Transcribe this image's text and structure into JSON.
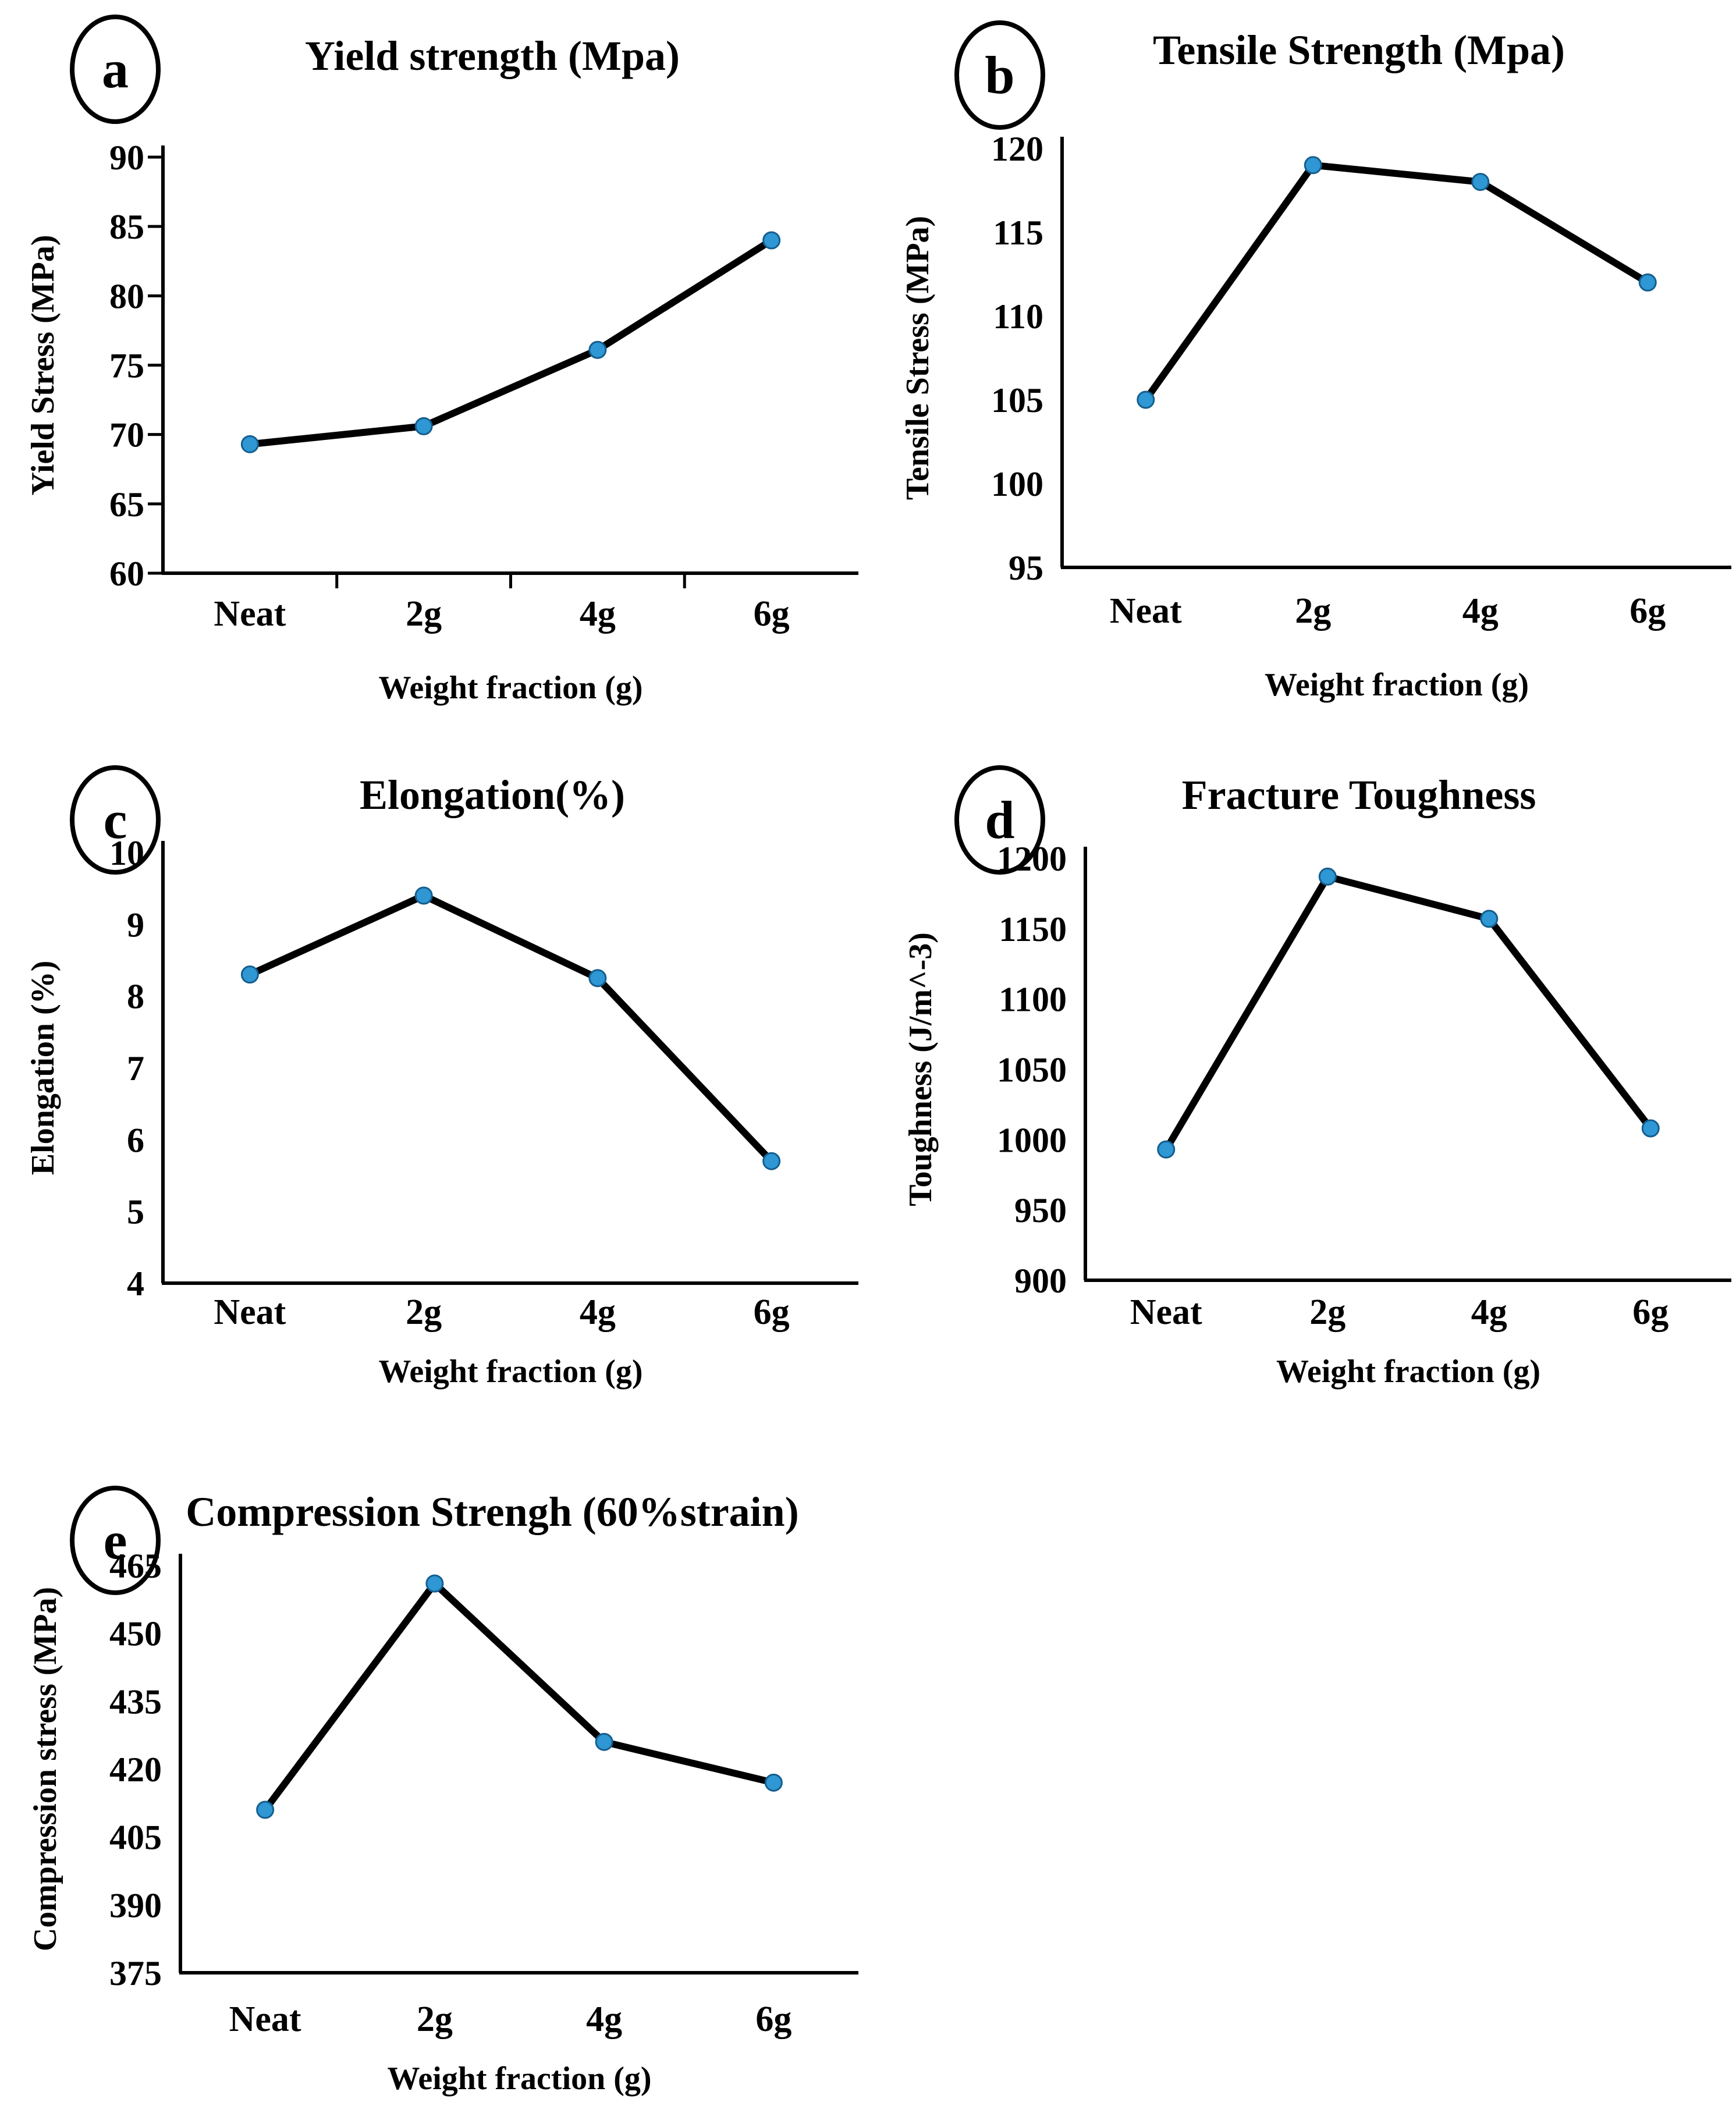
{
  "colors": {
    "marker": "#2e97d4",
    "marker_outline": "#155e8e",
    "line": "#000000",
    "axis": "#000000"
  },
  "x_axis_label_shared": "Weight fraction (g)",
  "chart_data": [
    {
      "panel_label": "a",
      "type": "line",
      "title": "Yield strength (Mpa)",
      "categories": [
        "Neat",
        "2g",
        "4g",
        "6g"
      ],
      "values": [
        69.3,
        70.6,
        76.1,
        84
      ],
      "xlabel": "Weight fraction (g)",
      "ylabel": "Yield Stress (MPa)",
      "ylim": [
        60,
        90
      ],
      "ytick_step": 5,
      "grid": false,
      "legend": false,
      "line_color": "#000000",
      "marker_color": "#2e97d4"
    },
    {
      "panel_label": "b",
      "type": "line",
      "title": "Tensile Strength (Mpa)",
      "categories": [
        "Neat",
        "2g",
        "4g",
        "6g"
      ],
      "values": [
        105,
        119,
        118,
        112
      ],
      "xlabel": "Weight fraction (g)",
      "ylabel": "Tensile Stress (MPa)",
      "ylim": [
        95,
        120
      ],
      "ytick_step": 5,
      "grid": false,
      "legend": false,
      "line_color": "#000000",
      "marker_color": "#2e97d4"
    },
    {
      "panel_label": "c",
      "type": "line",
      "title": "Elongation(%)",
      "categories": [
        "Neat",
        "2g",
        "4g",
        "6g"
      ],
      "values": [
        8.3,
        9.4,
        8.25,
        5.7
      ],
      "xlabel": "Weight fraction (g)",
      "ylabel": "Elongation (%)",
      "ylim": [
        4,
        10
      ],
      "ytick_step": 1,
      "grid": false,
      "legend": false,
      "line_color": "#000000",
      "marker_color": "#2e97d4"
    },
    {
      "panel_label": "d",
      "type": "line",
      "title": "Fracture Toughness",
      "categories": [
        "Neat",
        "2g",
        "4g",
        "6g"
      ],
      "values": [
        993,
        1187,
        1157,
        1008
      ],
      "xlabel": "Weight fraction (g)",
      "ylabel": "Toughness (J/m^-3)",
      "ylim": [
        900,
        1200
      ],
      "ytick_step": 50,
      "grid": false,
      "legend": false,
      "line_color": "#000000",
      "marker_color": "#2e97d4"
    },
    {
      "panel_label": "e",
      "type": "line",
      "title": "Compression Strengh (60%strain)",
      "categories": [
        "Neat",
        "2g",
        "4g",
        "6g"
      ],
      "values": [
        411,
        461,
        426,
        417
      ],
      "xlabel": "Weight fraction (g)",
      "ylabel": "Compression stress (MPa)",
      "ylim": [
        375,
        465
      ],
      "ytick_step": 15,
      "grid": false,
      "legend": false,
      "line_color": "#000000",
      "marker_color": "#2e97d4"
    }
  ]
}
